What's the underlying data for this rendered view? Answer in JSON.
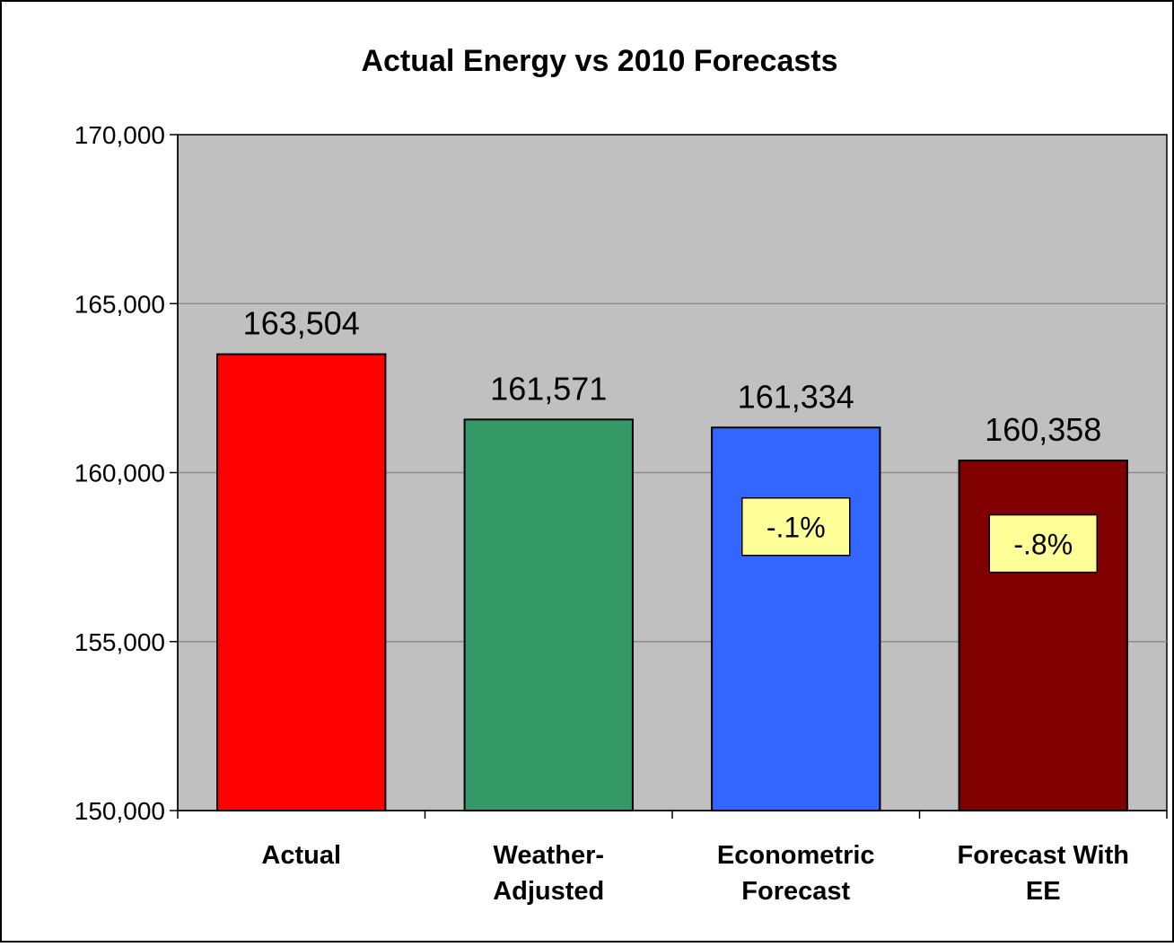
{
  "chart_data": {
    "type": "bar",
    "title": "Actual Energy vs 2010 Forecasts",
    "xlabel": "",
    "ylabel": "",
    "ylim": [
      150000,
      170000
    ],
    "yticks": [
      150000,
      155000,
      160000,
      165000,
      170000
    ],
    "ytick_labels": [
      "150,000",
      "155,000",
      "160,000",
      "165,000",
      "170,000"
    ],
    "grid": true,
    "categories": [
      [
        "Actual"
      ],
      [
        "Weather-",
        "Adjusted"
      ],
      [
        "Econometric",
        "Forecast"
      ],
      [
        "Forecast With",
        "EE"
      ]
    ],
    "values": [
      163504,
      161571,
      161334,
      160358
    ],
    "value_labels": [
      "163,504",
      "161,571",
      "161,334",
      "160,358"
    ],
    "bar_colors": [
      "#ff0000",
      "#339966",
      "#3366ff",
      "#800000"
    ],
    "annotations": [
      {
        "bar_index": 2,
        "text": "-.1%",
        "y_value": 158400
      },
      {
        "bar_index": 3,
        "text": "-.8%",
        "y_value": 157900
      }
    ],
    "plot_background": "#c0c0c0",
    "annotation_background": "#ffff99"
  }
}
